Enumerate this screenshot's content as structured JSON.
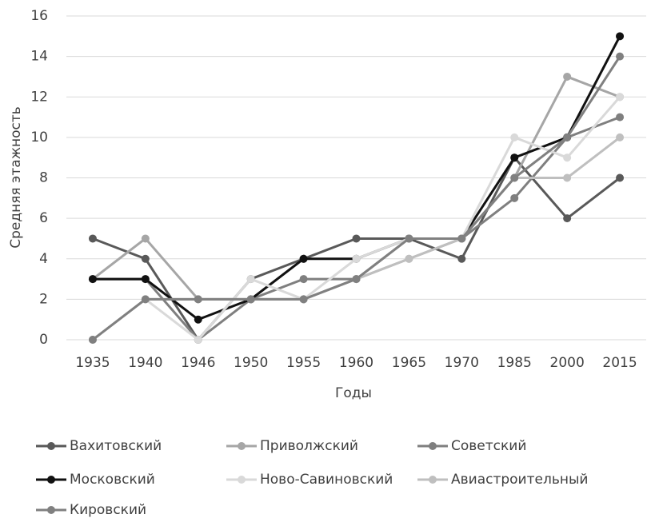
{
  "chart_data": {
    "type": "line",
    "xlabel": "Годы",
    "ylabel": "Средняя этажность",
    "categories": [
      "1935",
      "1940",
      "1946",
      "1950",
      "1955",
      "1960",
      "1965",
      "1970",
      "1985",
      "2000",
      "2015"
    ],
    "series": [
      {
        "name": "Вахитовский",
        "color": "#595959",
        "values": [
          5,
          4,
          0,
          3,
          4,
          5,
          5,
          4,
          9,
          6,
          8
        ]
      },
      {
        "name": "Приволжский",
        "color": "#a6a6a6",
        "values": [
          3,
          5,
          2,
          2,
          2,
          3,
          4,
          5,
          8,
          13,
          12
        ]
      },
      {
        "name": "Советский",
        "color": "#7f7f7f",
        "values": [
          3,
          3,
          0,
          2,
          3,
          3,
          5,
          5,
          7,
          10,
          11
        ]
      },
      {
        "name": "Московский",
        "color": "#111111",
        "values": [
          3,
          3,
          1,
          2,
          4,
          4,
          5,
          5,
          9,
          10,
          15
        ]
      },
      {
        "name": "Ново-Савиновский",
        "color": "#d9d9d9",
        "values": [
          0,
          2,
          0,
          3,
          2,
          4,
          5,
          5,
          10,
          9,
          12
        ]
      },
      {
        "name": "Авиастроительный",
        "color": "#bfbfbf",
        "values": [
          0,
          2,
          2,
          2,
          2,
          3,
          4,
          5,
          8,
          8,
          10
        ]
      },
      {
        "name": "Кировский",
        "color": "#808080",
        "values": [
          0,
          2,
          2,
          2,
          2,
          3,
          5,
          5,
          8,
          10,
          14
        ]
      }
    ],
    "ylim": [
      0,
      16
    ],
    "yticks": [
      0,
      2,
      4,
      6,
      8,
      10,
      12,
      14,
      16
    ],
    "grid": true
  }
}
